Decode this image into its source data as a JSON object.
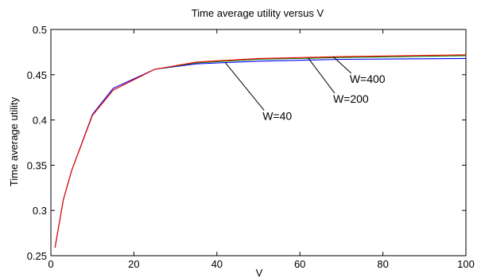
{
  "chart_data": {
    "type": "line",
    "title": "Time average utility versus V",
    "xlabel": "V",
    "ylabel": "Time average utility",
    "xlim": [
      0,
      100
    ],
    "ylim": [
      0.25,
      0.5
    ],
    "xticks": [
      0,
      20,
      40,
      60,
      80,
      100
    ],
    "yticks": [
      0.25,
      0.3,
      0.35,
      0.4,
      0.45,
      0.5
    ],
    "xtick_labels": [
      "0",
      "20",
      "40",
      "60",
      "80",
      "100"
    ],
    "ytick_labels": [
      "0.25",
      "0.3",
      "0.35",
      "0.4",
      "0.45",
      "0.5"
    ],
    "grid": false,
    "x": [
      1,
      3,
      5,
      10,
      15,
      25,
      35,
      50,
      70,
      100
    ],
    "series": [
      {
        "color": "#0000ff",
        "values": [
          0.259,
          0.312,
          0.344,
          0.406,
          0.435,
          0.456,
          0.462,
          0.465,
          0.467,
          0.468
        ]
      },
      {
        "color": "#008000",
        "values": [
          0.259,
          0.312,
          0.344,
          0.405,
          0.433,
          0.456,
          0.463,
          0.467,
          0.469,
          0.471
        ]
      },
      {
        "color": "#ff0000",
        "values": [
          0.259,
          0.312,
          0.344,
          0.405,
          0.433,
          0.456,
          0.464,
          0.468,
          0.47,
          0.472
        ]
      }
    ],
    "annotations": [
      {
        "text": "W=40",
        "x": 51,
        "y": 0.4
      },
      {
        "text": "W=200",
        "x": 68,
        "y": 0.419
      },
      {
        "text": "W=400",
        "x": 72,
        "y": 0.441
      }
    ]
  }
}
